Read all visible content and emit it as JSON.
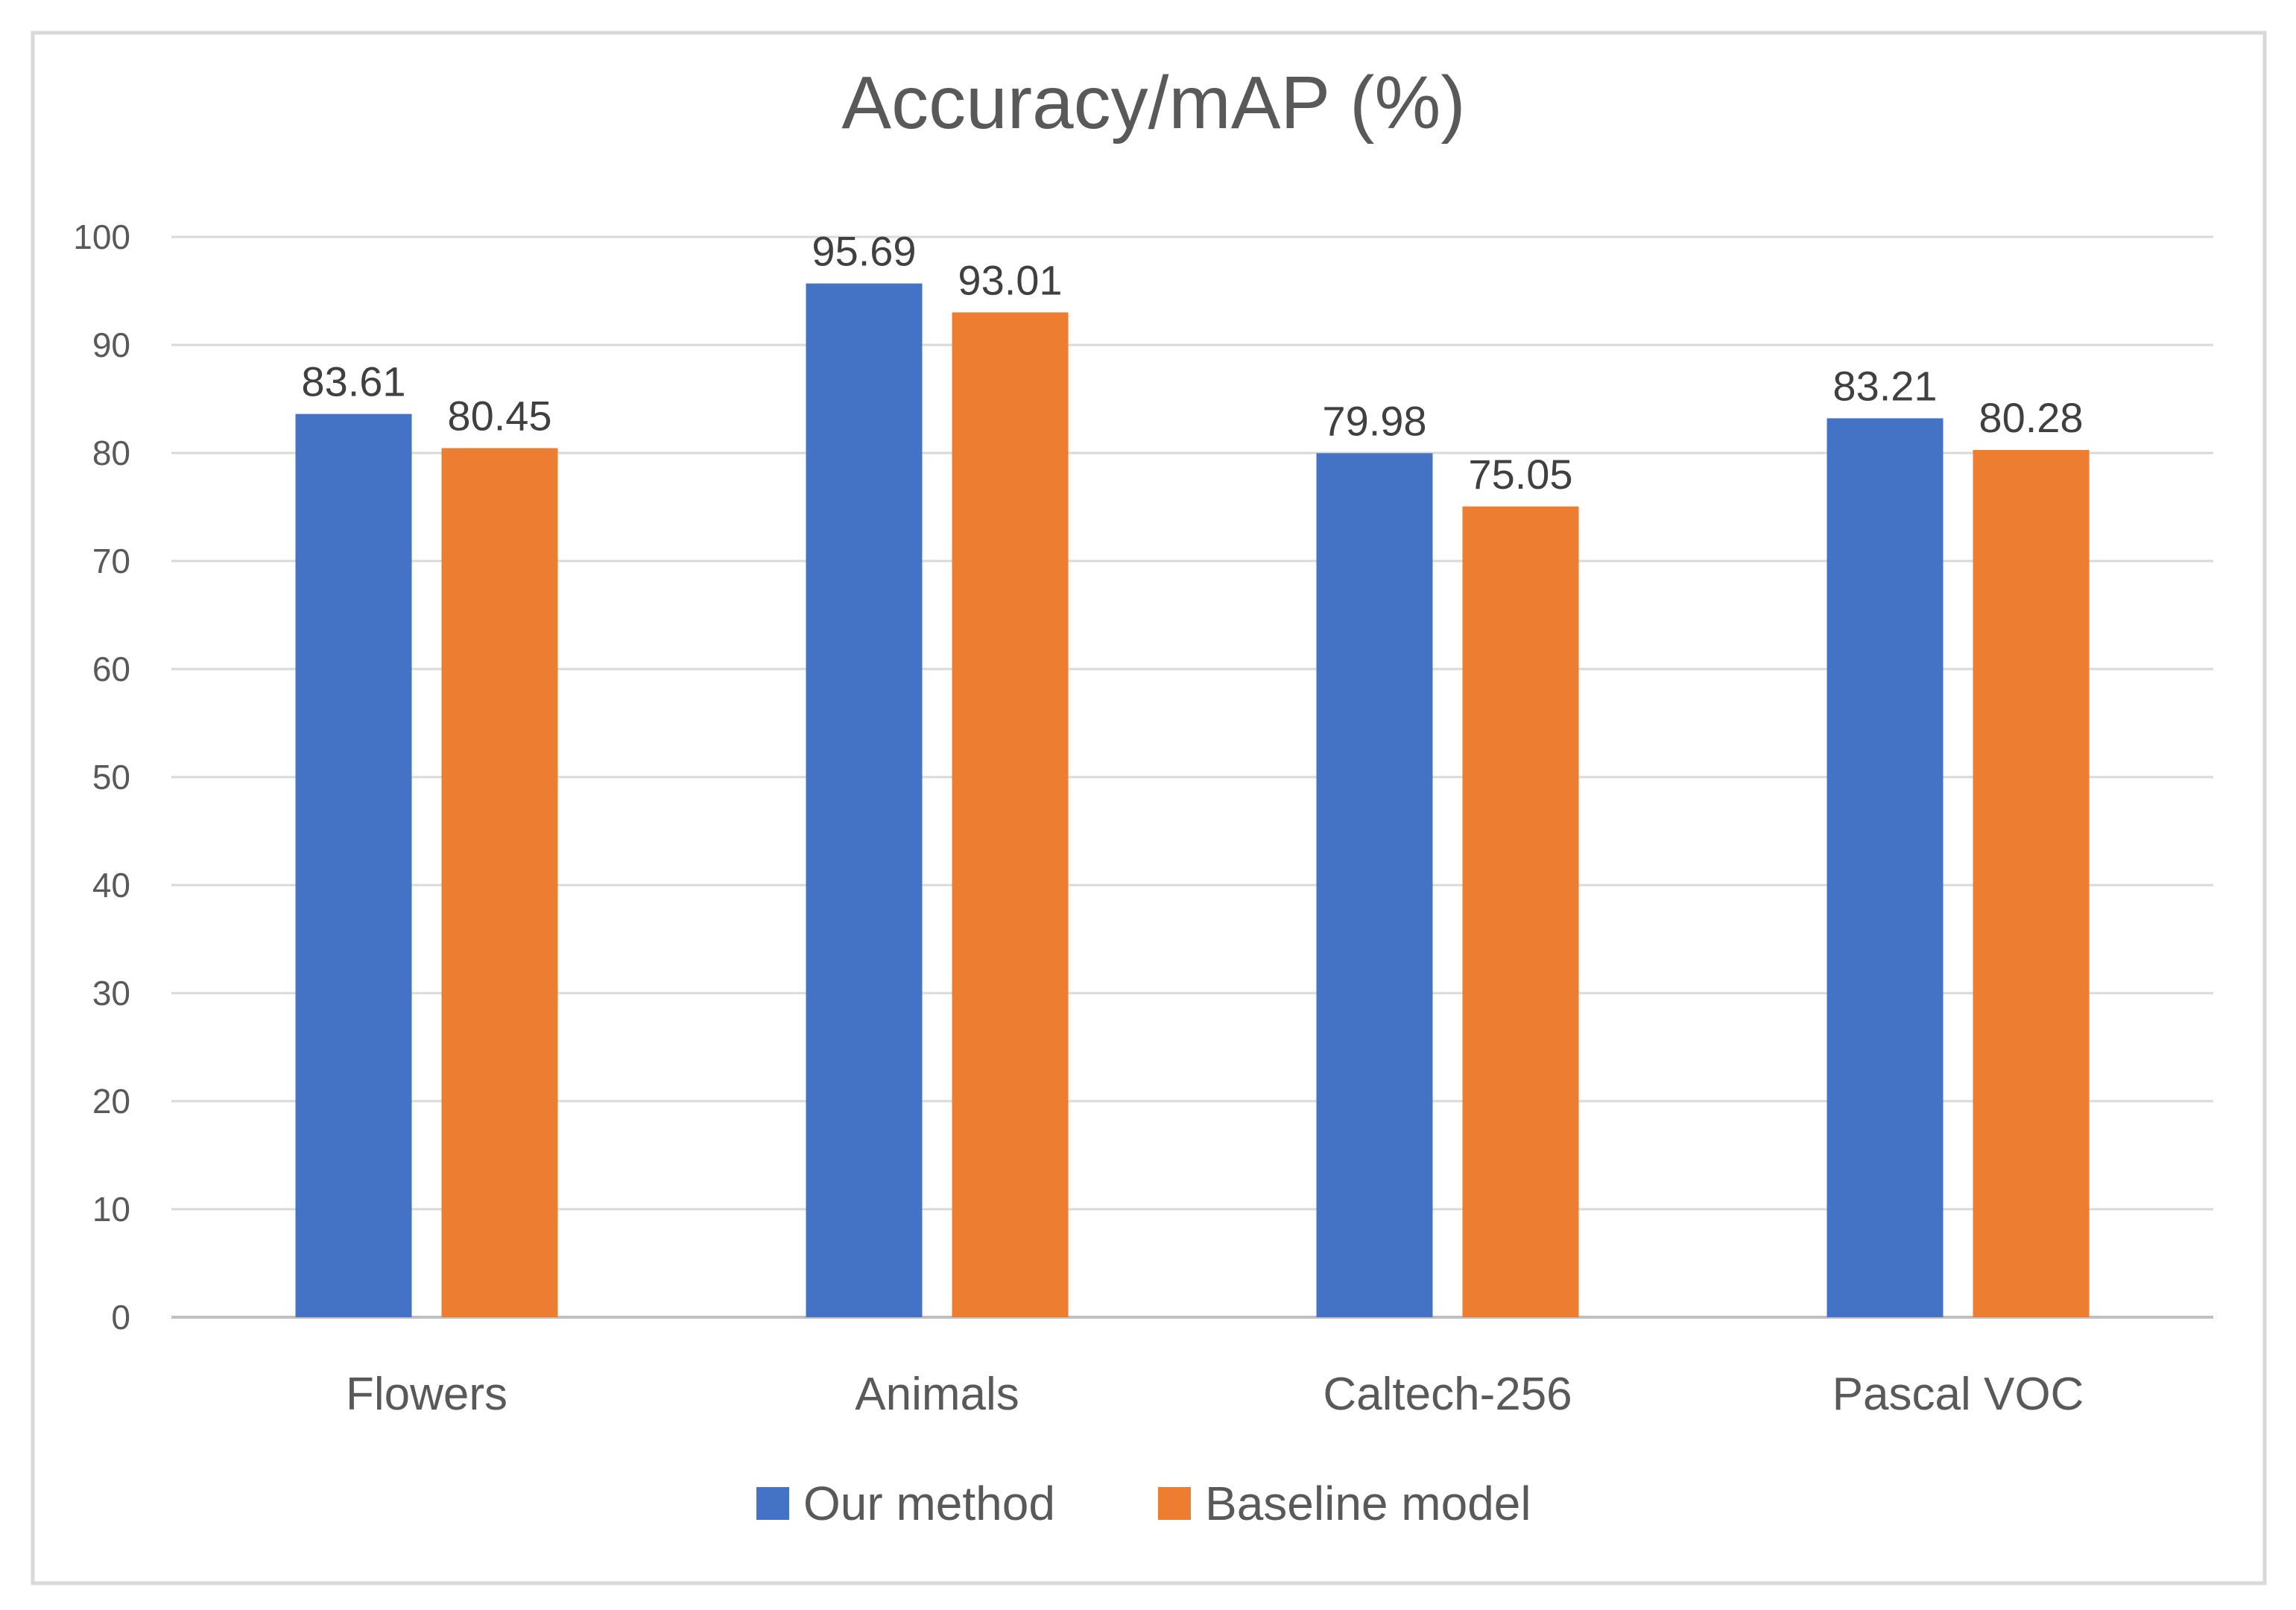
{
  "chart_data": {
    "type": "bar",
    "title": "Accuracy/mAP (%)",
    "xlabel": "",
    "ylabel": "",
    "categories": [
      "Flowers",
      "Animals",
      "Caltech-256",
      "Pascal VOC"
    ],
    "series": [
      {
        "name": "Our method",
        "color": "#4472C4",
        "values": [
          83.61,
          95.69,
          79.98,
          83.21
        ],
        "labels": [
          "83.61",
          "95.69",
          "79.98",
          "83.21"
        ]
      },
      {
        "name": "Baseline model",
        "color": "#ED7D31",
        "values": [
          80.45,
          93.01,
          75.05,
          80.28
        ],
        "labels": [
          "80.45",
          "93.01",
          "75.05",
          "80.28"
        ]
      }
    ],
    "ylim": [
      0,
      100
    ],
    "yticks": [
      0,
      10,
      20,
      30,
      40,
      50,
      60,
      70,
      80,
      90,
      100
    ],
    "ytick_labels": [
      "0",
      "10",
      "20",
      "30",
      "40",
      "50",
      "60",
      "70",
      "80",
      "90",
      "100"
    ],
    "grid": true,
    "legend_position": "bottom-center"
  }
}
